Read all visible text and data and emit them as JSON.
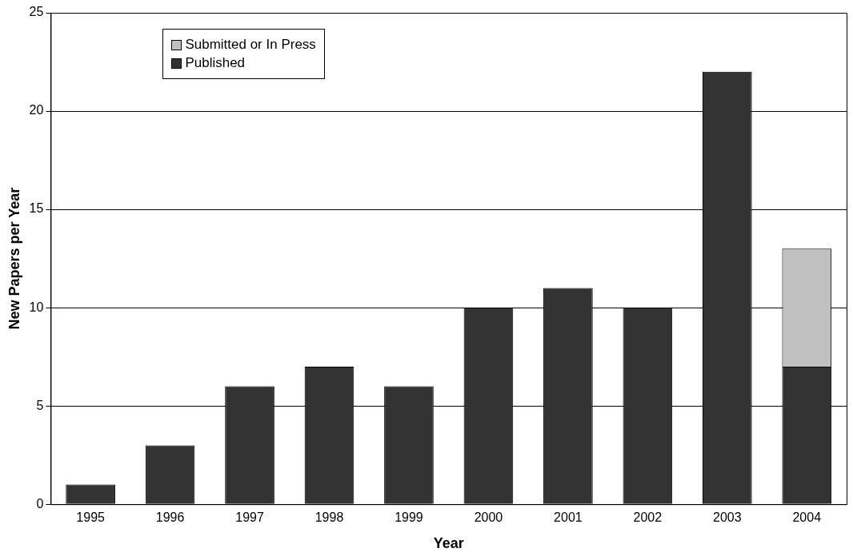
{
  "chart_data": {
    "type": "bar",
    "xlabel": "Year",
    "ylabel": "New Papers per Year",
    "categories": [
      "1995",
      "1996",
      "1997",
      "1998",
      "1999",
      "2000",
      "2001",
      "2002",
      "2003",
      "2004"
    ],
    "stacked": true,
    "series": [
      {
        "name": "Published",
        "color": "#333333",
        "values": [
          1,
          3,
          6,
          7,
          6,
          10,
          11,
          10,
          22,
          7
        ]
      },
      {
        "name": "Submitted or In Press",
        "color": "#c0c0c0",
        "values": [
          null,
          null,
          null,
          null,
          null,
          null,
          null,
          null,
          null,
          6
        ]
      }
    ],
    "ylim": [
      0,
      25
    ],
    "yticks": [
      0,
      5,
      10,
      15,
      20,
      25
    ],
    "grid": "y",
    "legend": "top left"
  }
}
